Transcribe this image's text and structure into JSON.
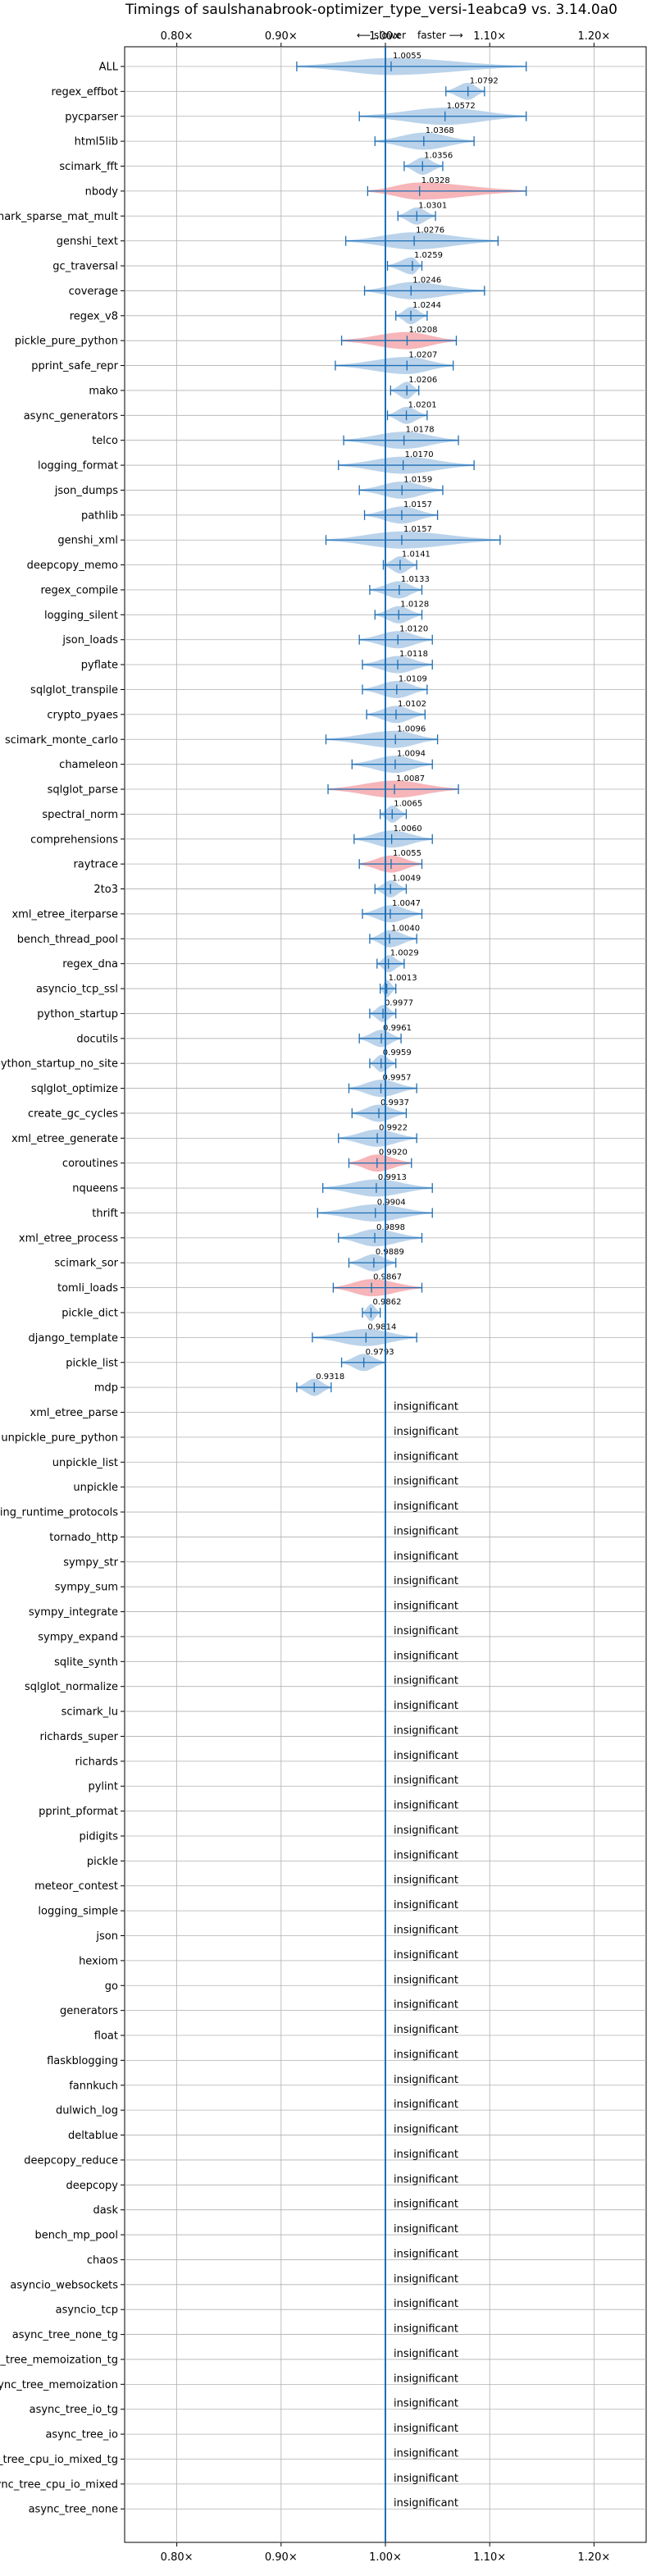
{
  "chart_data": {
    "type": "violin",
    "title": "Timings of saulshanabrook-optimizer_type_versi-1eabca9 vs. 3.14.0a0",
    "direction_labels": {
      "slower": "⟵ slower",
      "faster": "faster ⟶"
    },
    "x_ticks": [
      {
        "value": 0.8,
        "label": "0.80×"
      },
      {
        "value": 0.9,
        "label": "0.90×"
      },
      {
        "value": 1.0,
        "label": "1.00×"
      },
      {
        "value": 1.1,
        "label": "1.10×"
      },
      {
        "value": 1.2,
        "label": "1.20×"
      }
    ],
    "xlim": [
      0.75,
      1.25
    ],
    "baseline": 1.0,
    "grid": true,
    "colors": {
      "faster": "#aecbe8",
      "slower": "#f4a8ad",
      "errorbar": "#1f6fb4",
      "baseline": "#1f6fb4",
      "grid": "#b0b0b0"
    },
    "insignificant_label": "insignificant",
    "benchmarks": [
      {
        "name": "ALL",
        "mean": 1.0055,
        "lo": 0.915,
        "hi": 1.135,
        "color": "faster",
        "label": "1.0055"
      },
      {
        "name": "regex_effbot",
        "mean": 1.0792,
        "lo": 1.058,
        "hi": 1.095,
        "color": "faster",
        "label": "1.0792"
      },
      {
        "name": "pycparser",
        "mean": 1.0572,
        "lo": 0.975,
        "hi": 1.135,
        "color": "faster",
        "label": "1.0572"
      },
      {
        "name": "html5lib",
        "mean": 1.0368,
        "lo": 0.99,
        "hi": 1.085,
        "color": "faster",
        "label": "1.0368"
      },
      {
        "name": "scimark_fft",
        "mean": 1.0356,
        "lo": 1.018,
        "hi": 1.055,
        "color": "faster",
        "label": "1.0356"
      },
      {
        "name": "nbody",
        "mean": 1.0328,
        "lo": 0.983,
        "hi": 1.135,
        "color": "slower",
        "label": "1.0328"
      },
      {
        "name": "scimark_sparse_mat_mult",
        "mean": 1.0301,
        "lo": 1.012,
        "hi": 1.048,
        "color": "faster",
        "label": "1.0301"
      },
      {
        "name": "genshi_text",
        "mean": 1.0276,
        "lo": 0.962,
        "hi": 1.108,
        "color": "faster",
        "label": "1.0276"
      },
      {
        "name": "gc_traversal",
        "mean": 1.0259,
        "lo": 1.002,
        "hi": 1.035,
        "color": "faster",
        "label": "1.0259"
      },
      {
        "name": "coverage",
        "mean": 1.0246,
        "lo": 0.98,
        "hi": 1.095,
        "color": "faster",
        "label": "1.0246"
      },
      {
        "name": "regex_v8",
        "mean": 1.0244,
        "lo": 1.01,
        "hi": 1.04,
        "color": "faster",
        "label": "1.0244"
      },
      {
        "name": "pickle_pure_python",
        "mean": 1.0208,
        "lo": 0.958,
        "hi": 1.068,
        "color": "slower",
        "label": "1.0208"
      },
      {
        "name": "pprint_safe_repr",
        "mean": 1.0207,
        "lo": 0.952,
        "hi": 1.065,
        "color": "faster",
        "label": "1.0207"
      },
      {
        "name": "mako",
        "mean": 1.0206,
        "lo": 1.005,
        "hi": 1.032,
        "color": "faster",
        "label": "1.0206"
      },
      {
        "name": "async_generators",
        "mean": 1.0201,
        "lo": 1.002,
        "hi": 1.04,
        "color": "faster",
        "label": "1.0201"
      },
      {
        "name": "telco",
        "mean": 1.0178,
        "lo": 0.96,
        "hi": 1.07,
        "color": "faster",
        "label": "1.0178"
      },
      {
        "name": "logging_format",
        "mean": 1.017,
        "lo": 0.955,
        "hi": 1.085,
        "color": "faster",
        "label": "1.0170"
      },
      {
        "name": "json_dumps",
        "mean": 1.0159,
        "lo": 0.975,
        "hi": 1.055,
        "color": "faster",
        "label": "1.0159"
      },
      {
        "name": "pathlib",
        "mean": 1.0157,
        "lo": 0.98,
        "hi": 1.05,
        "color": "faster",
        "label": "1.0157"
      },
      {
        "name": "genshi_xml",
        "mean": 1.0157,
        "lo": 0.943,
        "hi": 1.11,
        "color": "faster",
        "label": "1.0157"
      },
      {
        "name": "deepcopy_memo",
        "mean": 1.0141,
        "lo": 0.998,
        "hi": 1.03,
        "color": "faster",
        "label": "1.0141"
      },
      {
        "name": "regex_compile",
        "mean": 1.0133,
        "lo": 0.985,
        "hi": 1.035,
        "color": "faster",
        "label": "1.0133"
      },
      {
        "name": "logging_silent",
        "mean": 1.0128,
        "lo": 0.99,
        "hi": 1.035,
        "color": "faster",
        "label": "1.0128"
      },
      {
        "name": "json_loads",
        "mean": 1.012,
        "lo": 0.975,
        "hi": 1.045,
        "color": "faster",
        "label": "1.0120"
      },
      {
        "name": "pyflate",
        "mean": 1.0118,
        "lo": 0.978,
        "hi": 1.045,
        "color": "faster",
        "label": "1.0118"
      },
      {
        "name": "sqlglot_transpile",
        "mean": 1.0109,
        "lo": 0.978,
        "hi": 1.04,
        "color": "faster",
        "label": "1.0109"
      },
      {
        "name": "crypto_pyaes",
        "mean": 1.0102,
        "lo": 0.982,
        "hi": 1.038,
        "color": "faster",
        "label": "1.0102"
      },
      {
        "name": "scimark_monte_carlo",
        "mean": 1.0096,
        "lo": 0.943,
        "hi": 1.05,
        "color": "faster",
        "label": "1.0096"
      },
      {
        "name": "chameleon",
        "mean": 1.0094,
        "lo": 0.968,
        "hi": 1.045,
        "color": "faster",
        "label": "1.0094"
      },
      {
        "name": "sqlglot_parse",
        "mean": 1.0087,
        "lo": 0.945,
        "hi": 1.07,
        "color": "slower",
        "label": "1.0087"
      },
      {
        "name": "spectral_norm",
        "mean": 1.0065,
        "lo": 0.995,
        "hi": 1.02,
        "color": "faster",
        "label": "1.0065"
      },
      {
        "name": "comprehensions",
        "mean": 1.006,
        "lo": 0.97,
        "hi": 1.045,
        "color": "faster",
        "label": "1.0060"
      },
      {
        "name": "raytrace",
        "mean": 1.0055,
        "lo": 0.975,
        "hi": 1.035,
        "color": "slower",
        "label": "1.0055"
      },
      {
        "name": "2to3",
        "mean": 1.0049,
        "lo": 0.99,
        "hi": 1.02,
        "color": "faster",
        "label": "1.0049"
      },
      {
        "name": "xml_etree_iterparse",
        "mean": 1.0047,
        "lo": 0.978,
        "hi": 1.035,
        "color": "faster",
        "label": "1.0047"
      },
      {
        "name": "bench_thread_pool",
        "mean": 1.004,
        "lo": 0.985,
        "hi": 1.03,
        "color": "faster",
        "label": "1.0040"
      },
      {
        "name": "regex_dna",
        "mean": 1.0029,
        "lo": 0.992,
        "hi": 1.018,
        "color": "faster",
        "label": "1.0029"
      },
      {
        "name": "asyncio_tcp_ssl",
        "mean": 1.0013,
        "lo": 0.995,
        "hi": 1.01,
        "color": "faster",
        "label": "1.0013"
      },
      {
        "name": "python_startup",
        "mean": 0.9977,
        "lo": 0.985,
        "hi": 1.01,
        "color": "faster",
        "label": "0.9977"
      },
      {
        "name": "docutils",
        "mean": 0.9961,
        "lo": 0.975,
        "hi": 1.015,
        "color": "faster",
        "label": "0.9961"
      },
      {
        "name": "python_startup_no_site",
        "mean": 0.9959,
        "lo": 0.985,
        "hi": 1.01,
        "color": "faster",
        "label": "0.9959"
      },
      {
        "name": "sqlglot_optimize",
        "mean": 0.9957,
        "lo": 0.965,
        "hi": 1.03,
        "color": "faster",
        "label": "0.9957"
      },
      {
        "name": "create_gc_cycles",
        "mean": 0.9937,
        "lo": 0.968,
        "hi": 1.02,
        "color": "faster",
        "label": "0.9937"
      },
      {
        "name": "xml_etree_generate",
        "mean": 0.9922,
        "lo": 0.955,
        "hi": 1.03,
        "color": "faster",
        "label": "0.9922"
      },
      {
        "name": "coroutines",
        "mean": 0.992,
        "lo": 0.965,
        "hi": 1.025,
        "color": "slower",
        "label": "0.9920"
      },
      {
        "name": "nqueens",
        "mean": 0.9913,
        "lo": 0.94,
        "hi": 1.045,
        "color": "faster",
        "label": "0.9913"
      },
      {
        "name": "thrift",
        "mean": 0.9904,
        "lo": 0.935,
        "hi": 1.045,
        "color": "faster",
        "label": "0.9904"
      },
      {
        "name": "xml_etree_process",
        "mean": 0.9898,
        "lo": 0.955,
        "hi": 1.035,
        "color": "faster",
        "label": "0.9898"
      },
      {
        "name": "scimark_sor",
        "mean": 0.9889,
        "lo": 0.965,
        "hi": 1.01,
        "color": "faster",
        "label": "0.9889"
      },
      {
        "name": "tomli_loads",
        "mean": 0.9867,
        "lo": 0.95,
        "hi": 1.035,
        "color": "slower",
        "label": "0.9867"
      },
      {
        "name": "pickle_dict",
        "mean": 0.9862,
        "lo": 0.978,
        "hi": 0.995,
        "color": "faster",
        "label": "0.9862"
      },
      {
        "name": "django_template",
        "mean": 0.9814,
        "lo": 0.93,
        "hi": 1.03,
        "color": "faster",
        "label": "0.9814"
      },
      {
        "name": "pickle_list",
        "mean": 0.9793,
        "lo": 0.958,
        "hi": 1.0,
        "color": "faster",
        "label": "0.9793"
      },
      {
        "name": "mdp",
        "mean": 0.9318,
        "lo": 0.915,
        "hi": 0.948,
        "color": "faster",
        "label": "0.9318"
      },
      {
        "name": "xml_etree_parse",
        "insignificant": true
      },
      {
        "name": "unpickle_pure_python",
        "insignificant": true
      },
      {
        "name": "unpickle_list",
        "insignificant": true
      },
      {
        "name": "unpickle",
        "insignificant": true
      },
      {
        "name": "typing_runtime_protocols",
        "insignificant": true
      },
      {
        "name": "tornado_http",
        "insignificant": true
      },
      {
        "name": "sympy_str",
        "insignificant": true
      },
      {
        "name": "sympy_sum",
        "insignificant": true
      },
      {
        "name": "sympy_integrate",
        "insignificant": true
      },
      {
        "name": "sympy_expand",
        "insignificant": true
      },
      {
        "name": "sqlite_synth",
        "insignificant": true
      },
      {
        "name": "sqlglot_normalize",
        "insignificant": true
      },
      {
        "name": "scimark_lu",
        "insignificant": true
      },
      {
        "name": "richards_super",
        "insignificant": true
      },
      {
        "name": "richards",
        "insignificant": true
      },
      {
        "name": "pylint",
        "insignificant": true
      },
      {
        "name": "pprint_pformat",
        "insignificant": true
      },
      {
        "name": "pidigits",
        "insignificant": true
      },
      {
        "name": "pickle",
        "insignificant": true
      },
      {
        "name": "meteor_contest",
        "insignificant": true
      },
      {
        "name": "logging_simple",
        "insignificant": true
      },
      {
        "name": "json",
        "insignificant": true
      },
      {
        "name": "hexiom",
        "insignificant": true
      },
      {
        "name": "go",
        "insignificant": true
      },
      {
        "name": "generators",
        "insignificant": true
      },
      {
        "name": "float",
        "insignificant": true
      },
      {
        "name": "flaskblogging",
        "insignificant": true
      },
      {
        "name": "fannkuch",
        "insignificant": true
      },
      {
        "name": "dulwich_log",
        "insignificant": true
      },
      {
        "name": "deltablue",
        "insignificant": true
      },
      {
        "name": "deepcopy_reduce",
        "insignificant": true
      },
      {
        "name": "deepcopy",
        "insignificant": true
      },
      {
        "name": "dask",
        "insignificant": true
      },
      {
        "name": "bench_mp_pool",
        "insignificant": true
      },
      {
        "name": "chaos",
        "insignificant": true
      },
      {
        "name": "asyncio_websockets",
        "insignificant": true
      },
      {
        "name": "asyncio_tcp",
        "insignificant": true
      },
      {
        "name": "async_tree_none_tg",
        "insignificant": true
      },
      {
        "name": "async_tree_memoization_tg",
        "insignificant": true
      },
      {
        "name": "async_tree_memoization",
        "insignificant": true
      },
      {
        "name": "async_tree_io_tg",
        "insignificant": true
      },
      {
        "name": "async_tree_io",
        "insignificant": true
      },
      {
        "name": "async_tree_cpu_io_mixed_tg",
        "insignificant": true
      },
      {
        "name": "async_tree_cpu_io_mixed",
        "insignificant": true
      },
      {
        "name": "async_tree_none",
        "insignificant": true
      }
    ]
  }
}
